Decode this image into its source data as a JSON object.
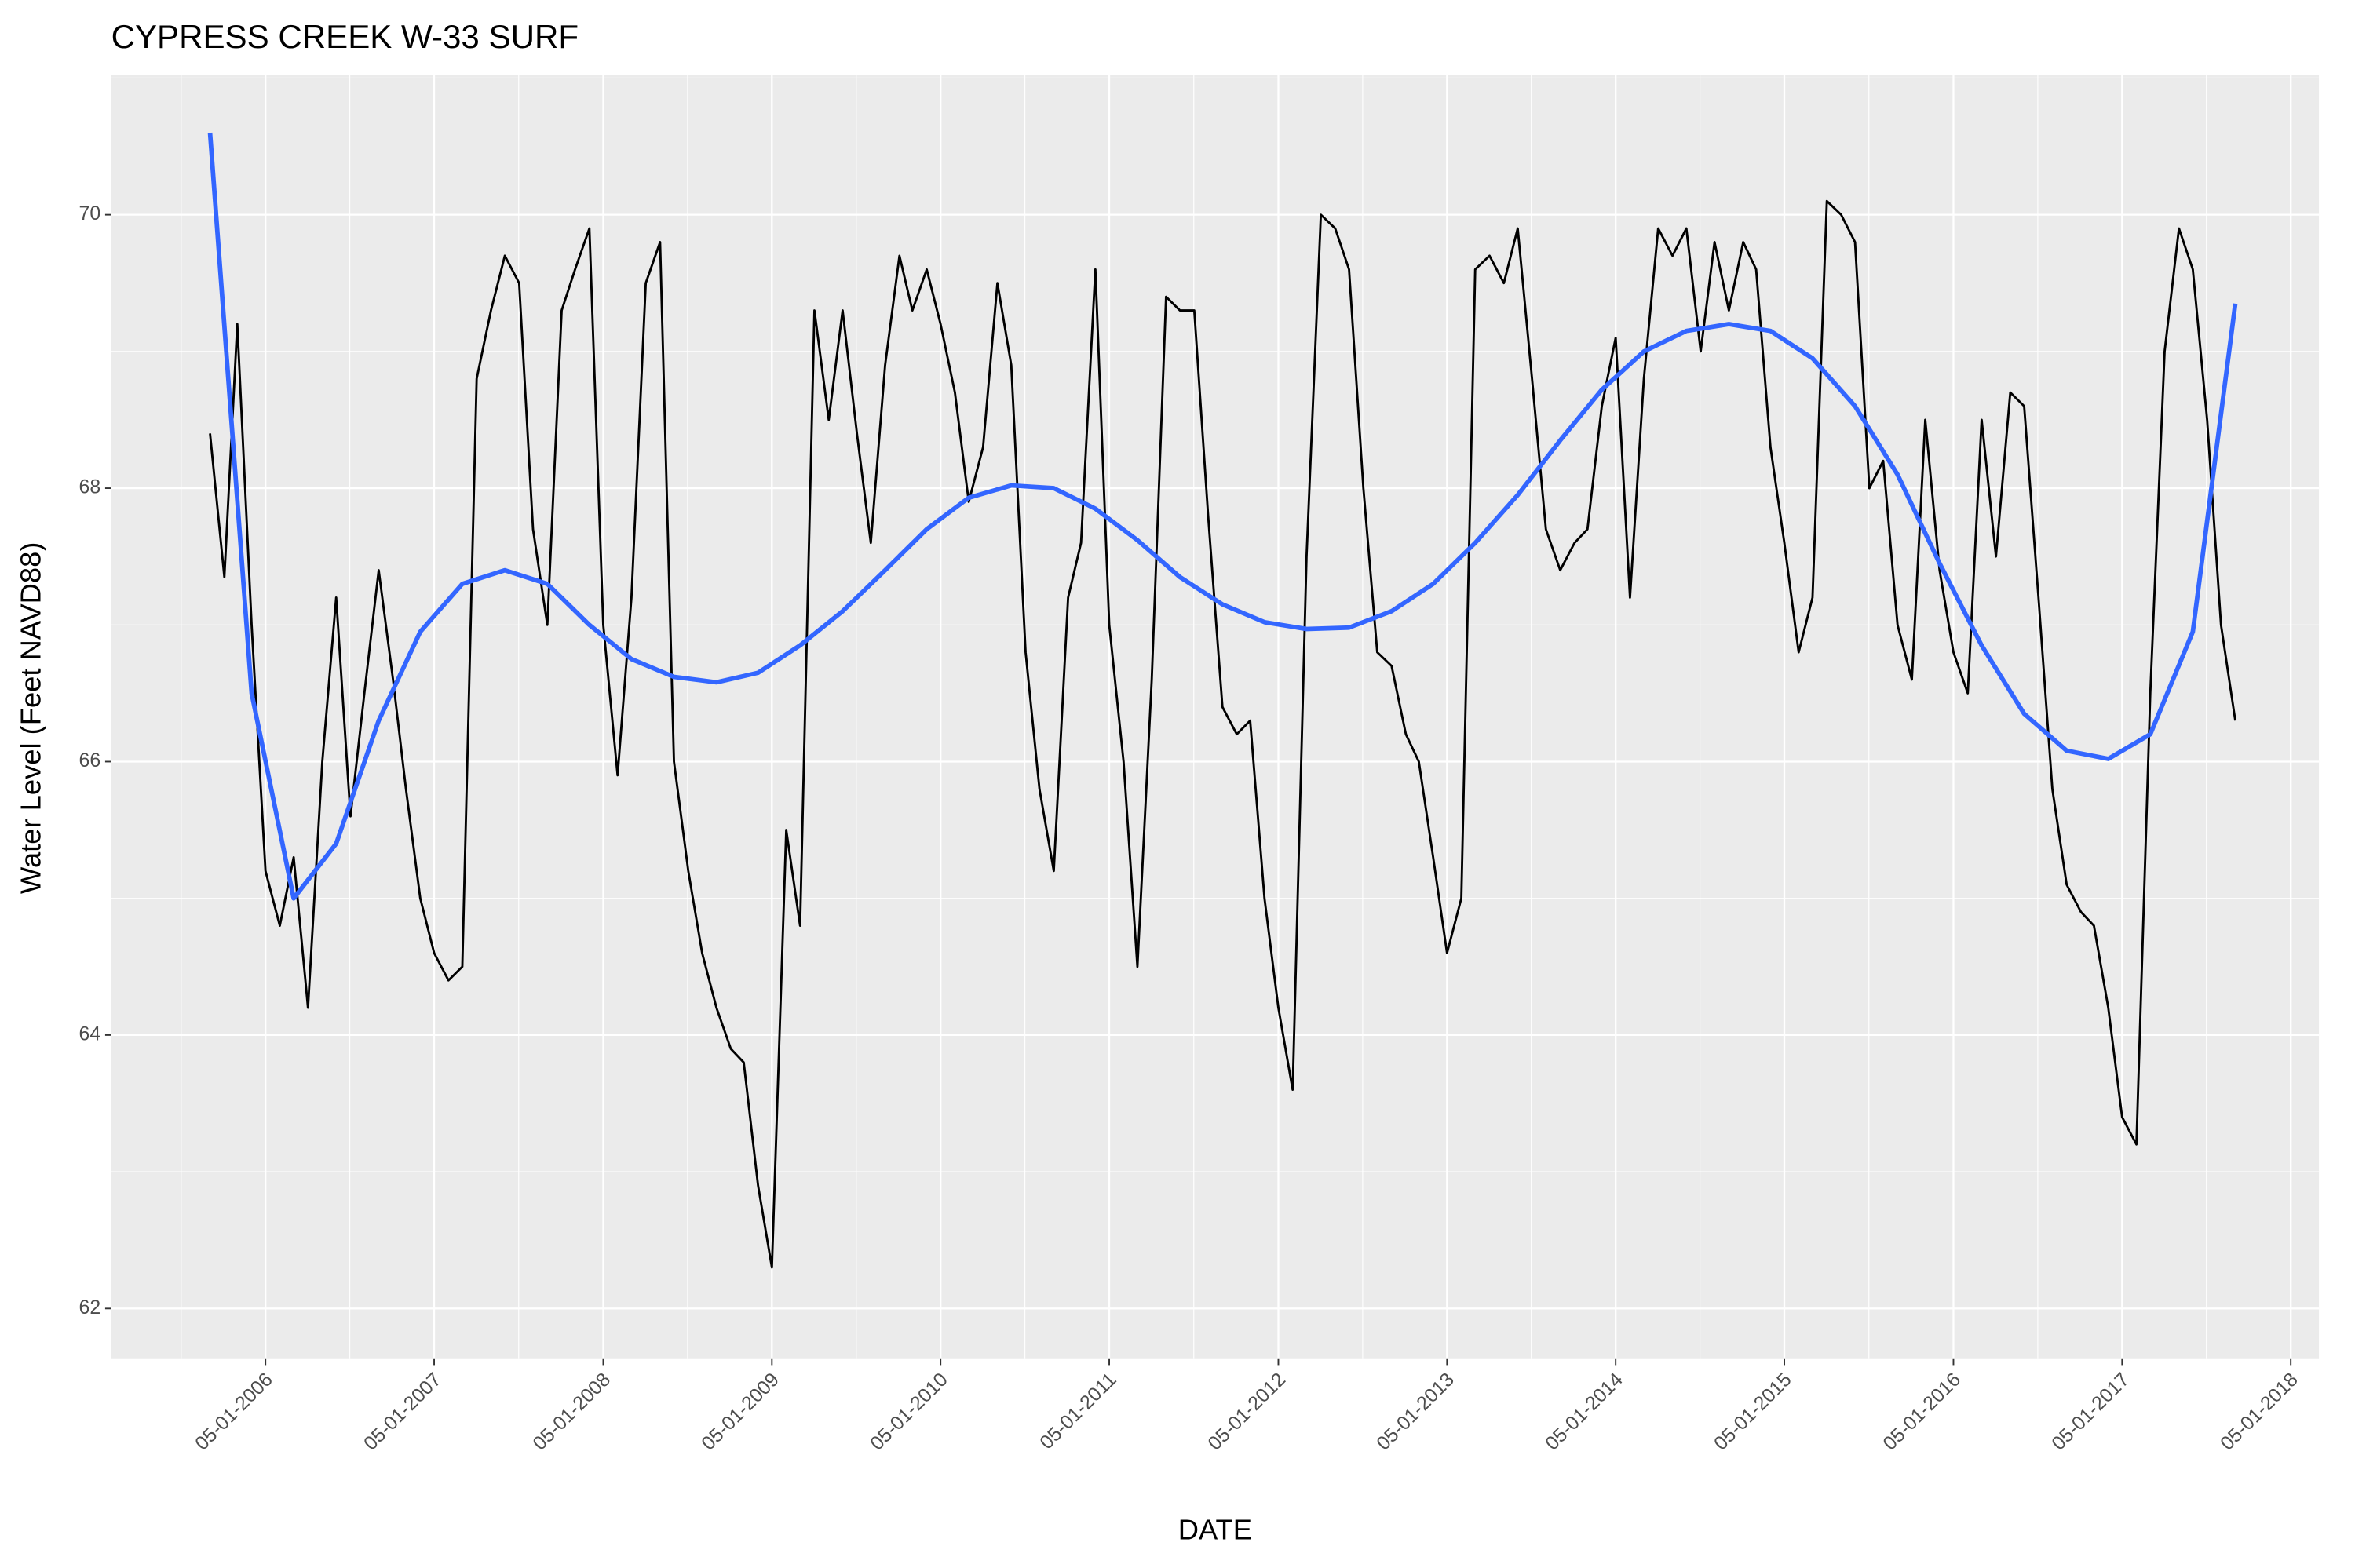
{
  "chart_data": {
    "type": "line",
    "title": "CYPRESS CREEK W-33 SURF",
    "x_label": "DATE",
    "y_label": "Water Level (Feet NAVD88)",
    "xlim": [
      "2005-06-01",
      "2018-07-01"
    ],
    "ylim": [
      61.63,
      71.02
    ],
    "yticks": [
      62,
      64,
      66,
      68,
      70
    ],
    "xticks": [
      {
        "value": "2006-05-01",
        "label": "05-01-2006"
      },
      {
        "value": "2007-05-01",
        "label": "05-01-2007"
      },
      {
        "value": "2008-05-01",
        "label": "05-01-2008"
      },
      {
        "value": "2009-05-01",
        "label": "05-01-2009"
      },
      {
        "value": "2010-05-01",
        "label": "05-01-2010"
      },
      {
        "value": "2011-05-01",
        "label": "05-01-2011"
      },
      {
        "value": "2012-05-01",
        "label": "05-01-2012"
      },
      {
        "value": "2013-05-01",
        "label": "05-01-2013"
      },
      {
        "value": "2014-05-01",
        "label": "05-01-2014"
      },
      {
        "value": "2015-05-01",
        "label": "05-01-2015"
      },
      {
        "value": "2016-05-01",
        "label": "05-01-2016"
      },
      {
        "value": "2017-05-01",
        "label": "05-01-2017"
      },
      {
        "value": "2018-05-01",
        "label": "05-01-2018"
      }
    ],
    "grid": true,
    "series": [
      {
        "color": "#000000",
        "x": [
          "2006-01-01",
          "2006-02-01",
          "2006-03-01",
          "2006-04-01",
          "2006-05-01",
          "2006-06-01",
          "2006-07-01",
          "2006-08-01",
          "2006-09-01",
          "2006-10-01",
          "2006-11-01",
          "2006-12-01",
          "2007-01-01",
          "2007-02-01",
          "2007-03-01",
          "2007-04-01",
          "2007-05-01",
          "2007-06-01",
          "2007-07-01",
          "2007-08-01",
          "2007-09-01",
          "2007-10-01",
          "2007-11-01",
          "2007-12-01",
          "2008-01-01",
          "2008-02-01",
          "2008-03-01",
          "2008-04-01",
          "2008-05-01",
          "2008-06-01",
          "2008-07-01",
          "2008-08-01",
          "2008-09-01",
          "2008-10-01",
          "2008-11-01",
          "2008-12-01",
          "2009-01-01",
          "2009-02-01",
          "2009-03-01",
          "2009-04-01",
          "2009-05-01",
          "2009-06-01",
          "2009-07-01",
          "2009-08-01",
          "2009-09-01",
          "2009-10-01",
          "2009-11-01",
          "2009-12-01",
          "2010-01-01",
          "2010-02-01",
          "2010-03-01",
          "2010-04-01",
          "2010-05-01",
          "2010-06-01",
          "2010-07-01",
          "2010-08-01",
          "2010-09-01",
          "2010-10-01",
          "2010-11-01",
          "2010-12-01",
          "2011-01-01",
          "2011-02-01",
          "2011-03-01",
          "2011-04-01",
          "2011-05-01",
          "2011-06-01",
          "2011-07-01",
          "2011-08-01",
          "2011-09-01",
          "2011-10-01",
          "2011-11-01",
          "2011-12-01",
          "2012-01-01",
          "2012-02-01",
          "2012-03-01",
          "2012-04-01",
          "2012-05-01",
          "2012-06-01",
          "2012-07-01",
          "2012-08-01",
          "2012-09-01",
          "2012-10-01",
          "2012-11-01",
          "2012-12-01",
          "2013-01-01",
          "2013-02-01",
          "2013-03-01",
          "2013-04-01",
          "2013-05-01",
          "2013-06-01",
          "2013-07-01",
          "2013-08-01",
          "2013-09-01",
          "2013-10-01",
          "2013-11-01",
          "2013-12-01",
          "2014-01-01",
          "2014-02-01",
          "2014-03-01",
          "2014-04-01",
          "2014-05-01",
          "2014-06-01",
          "2014-07-01",
          "2014-08-01",
          "2014-09-01",
          "2014-10-01",
          "2014-11-01",
          "2014-12-01",
          "2015-01-01",
          "2015-02-01",
          "2015-03-01",
          "2015-04-01",
          "2015-05-01",
          "2015-06-01",
          "2015-07-01",
          "2015-08-01",
          "2015-09-01",
          "2015-10-01",
          "2015-11-01",
          "2015-12-01",
          "2016-01-01",
          "2016-02-01",
          "2016-03-01",
          "2016-04-01",
          "2016-05-01",
          "2016-06-01",
          "2016-07-01",
          "2016-08-01",
          "2016-09-01",
          "2016-10-01",
          "2016-11-01",
          "2016-12-01",
          "2017-01-01",
          "2017-02-01",
          "2017-03-01",
          "2017-04-01",
          "2017-05-01",
          "2017-06-01",
          "2017-07-01",
          "2017-08-01",
          "2017-09-01",
          "2017-10-01",
          "2017-11-01",
          "2017-12-01",
          "2018-01-01"
        ],
        "values": [
          68.4,
          67.35,
          69.2,
          67.0,
          65.2,
          64.8,
          65.3,
          64.2,
          66.0,
          67.2,
          65.6,
          66.5,
          67.4,
          66.6,
          65.8,
          65.0,
          64.6,
          64.4,
          64.5,
          68.8,
          69.3,
          69.7,
          69.5,
          67.7,
          67.0,
          69.3,
          69.6,
          69.9,
          67.0,
          65.9,
          67.2,
          69.5,
          69.8,
          66.0,
          65.2,
          64.6,
          64.2,
          63.9,
          63.8,
          62.9,
          62.3,
          65.5,
          64.8,
          69.3,
          68.5,
          69.3,
          68.4,
          67.6,
          68.9,
          69.7,
          69.3,
          69.6,
          69.2,
          68.7,
          67.9,
          68.3,
          69.5,
          68.9,
          66.8,
          65.8,
          65.2,
          67.2,
          67.6,
          69.6,
          67.0,
          66.0,
          64.5,
          66.6,
          69.4,
          69.3,
          69.3,
          67.8,
          66.4,
          66.2,
          66.3,
          65.0,
          64.2,
          63.6,
          67.5,
          70.0,
          69.9,
          69.6,
          68.0,
          66.8,
          66.7,
          66.2,
          66.0,
          65.3,
          64.6,
          65.0,
          69.6,
          69.7,
          69.5,
          69.9,
          68.8,
          67.7,
          67.4,
          67.6,
          67.7,
          68.6,
          69.1,
          67.2,
          68.8,
          69.9,
          69.7,
          69.9,
          69.0,
          69.8,
          69.3,
          69.8,
          69.6,
          68.3,
          67.6,
          66.8,
          67.2,
          70.1,
          70.0,
          69.8,
          68.0,
          68.2,
          67.0,
          66.6,
          68.5,
          67.4,
          66.8,
          66.5,
          68.5,
          67.5,
          68.7,
          68.6,
          67.2,
          65.8,
          65.1,
          64.9,
          64.8,
          64.2,
          63.4,
          63.2,
          66.5,
          69.0,
          69.9,
          69.6,
          68.5,
          67.0,
          66.3
        ]
      },
      {
        "color": "#3366ff",
        "x": [
          "2006-01-01",
          "2006-04-01",
          "2006-07-01",
          "2006-10-01",
          "2007-01-01",
          "2007-04-01",
          "2007-07-01",
          "2007-10-01",
          "2008-01-01",
          "2008-04-01",
          "2008-07-01",
          "2008-10-01",
          "2009-01-01",
          "2009-04-01",
          "2009-07-01",
          "2009-10-01",
          "2010-01-01",
          "2010-04-01",
          "2010-07-01",
          "2010-10-01",
          "2011-01-01",
          "2011-04-01",
          "2011-07-01",
          "2011-10-01",
          "2012-01-01",
          "2012-04-01",
          "2012-07-01",
          "2012-10-01",
          "2013-01-01",
          "2013-04-01",
          "2013-07-01",
          "2013-10-01",
          "2014-01-01",
          "2014-04-01",
          "2014-07-01",
          "2014-10-01",
          "2015-01-01",
          "2015-04-01",
          "2015-07-01",
          "2015-10-01",
          "2016-01-01",
          "2016-04-01",
          "2016-07-01",
          "2016-10-01",
          "2017-01-01",
          "2017-04-01",
          "2017-07-01",
          "2017-10-01",
          "2018-01-01"
        ],
        "values": [
          70.6,
          66.5,
          65.0,
          65.4,
          66.3,
          66.95,
          67.3,
          67.4,
          67.3,
          67.0,
          66.75,
          66.62,
          66.58,
          66.65,
          66.85,
          67.1,
          67.4,
          67.7,
          67.93,
          68.02,
          68.0,
          67.85,
          67.62,
          67.35,
          67.15,
          67.02,
          66.97,
          66.98,
          67.1,
          67.3,
          67.6,
          67.95,
          68.35,
          68.72,
          69.0,
          69.15,
          69.2,
          69.15,
          68.95,
          68.6,
          68.1,
          67.45,
          66.85,
          66.35,
          66.08,
          66.02,
          66.2,
          66.95,
          69.35
        ]
      }
    ]
  }
}
